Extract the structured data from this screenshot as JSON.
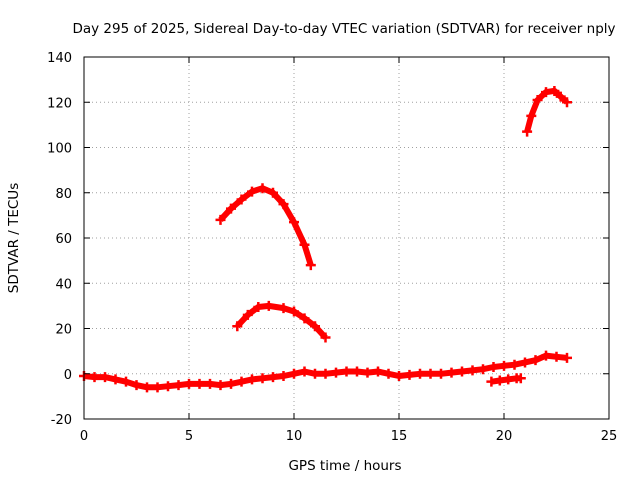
{
  "chart_data": {
    "type": "scatter",
    "title": "Day 295 of 2025, Sidereal Day-to-day VTEC variation (SDTVAR) for receiver nply",
    "xlabel": "GPS time / hours",
    "ylabel": "SDTVAR / TECUs",
    "xlim": [
      0,
      25
    ],
    "ylim": [
      -20,
      140
    ],
    "xticks": [
      "0",
      "5",
      "10",
      "15",
      "20",
      "25"
    ],
    "yticks": [
      "-20",
      "0",
      "20",
      "40",
      "60",
      "80",
      "100",
      "120",
      "140"
    ],
    "grid": true,
    "marker": "+",
    "color": "#ff0000",
    "series": [
      {
        "name": "baseline",
        "x": [
          0,
          0.5,
          1,
          1.5,
          2,
          2.5,
          3,
          3.5,
          4,
          4.5,
          5,
          5.5,
          6,
          6.5,
          7,
          7.5,
          8,
          8.5,
          9,
          9.5,
          10,
          10.5,
          11,
          11.5,
          12,
          12.5,
          13,
          13.5,
          14,
          14.5,
          15,
          15.5,
          16,
          16.5,
          17,
          17.5,
          18,
          18.5,
          19,
          19.5,
          20,
          20.5,
          21,
          21.5,
          22,
          22.5,
          23
        ],
        "y": [
          -1,
          -1.5,
          -1.5,
          -2.5,
          -3.5,
          -5,
          -6,
          -6,
          -5.5,
          -5,
          -4.5,
          -4.5,
          -4.5,
          -5,
          -4.5,
          -3.5,
          -2.5,
          -2,
          -1.5,
          -1,
          0,
          1,
          0,
          0,
          0.5,
          1,
          1,
          0.5,
          1,
          0,
          -1,
          -0.5,
          0,
          0,
          0,
          0.5,
          1,
          1.5,
          2,
          3,
          3.5,
          4,
          5,
          6,
          8,
          7.5,
          7
        ]
      },
      {
        "name": "arc-80",
        "x": [
          6.5,
          7,
          7.5,
          8,
          8.5,
          9,
          9.5,
          10,
          10.5,
          10.8
        ],
        "y": [
          68,
          73,
          77,
          80.5,
          82,
          80,
          75,
          67,
          57,
          48
        ]
      },
      {
        "name": "arc-30",
        "x": [
          7.3,
          7.8,
          8.3,
          8.8,
          9.5,
          10,
          10.5,
          11,
          11.5
        ],
        "y": [
          21,
          26,
          29.5,
          30,
          29,
          27.5,
          24.5,
          21,
          16
        ]
      },
      {
        "name": "late-low",
        "x": [
          19.4,
          19.8,
          20.2,
          20.6,
          20.8
        ],
        "y": [
          -3.5,
          -3,
          -2.5,
          -2,
          -2
        ]
      },
      {
        "name": "late-high",
        "x": [
          21.1,
          21.3,
          21.6,
          22,
          22.4,
          22.7,
          23
        ],
        "y": [
          107,
          114,
          121,
          124.5,
          125,
          122.5,
          120
        ]
      }
    ]
  }
}
